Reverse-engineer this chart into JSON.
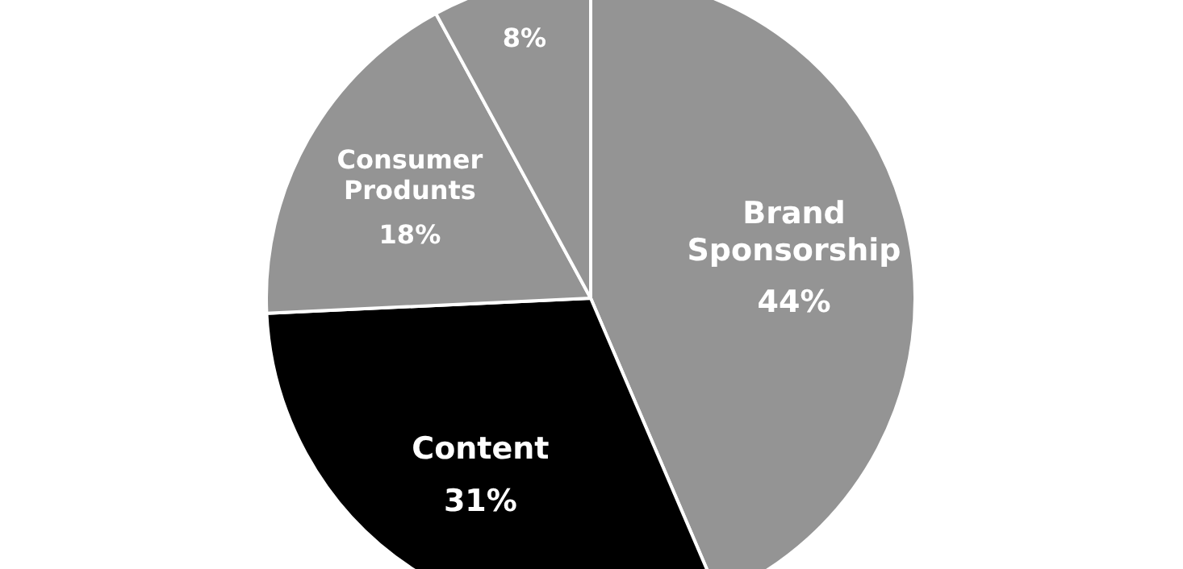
{
  "chart_data": {
    "type": "pie",
    "categories": [
      "Brand Sponsorship",
      "Content",
      "Consumer Produnts",
      null
    ],
    "values": [
      44,
      31,
      18,
      8
    ],
    "value_labels": [
      "44%",
      "31%",
      "18%",
      "8%"
    ],
    "colors": [
      "#949494",
      "#000000",
      "#949494",
      "#949494"
    ]
  }
}
